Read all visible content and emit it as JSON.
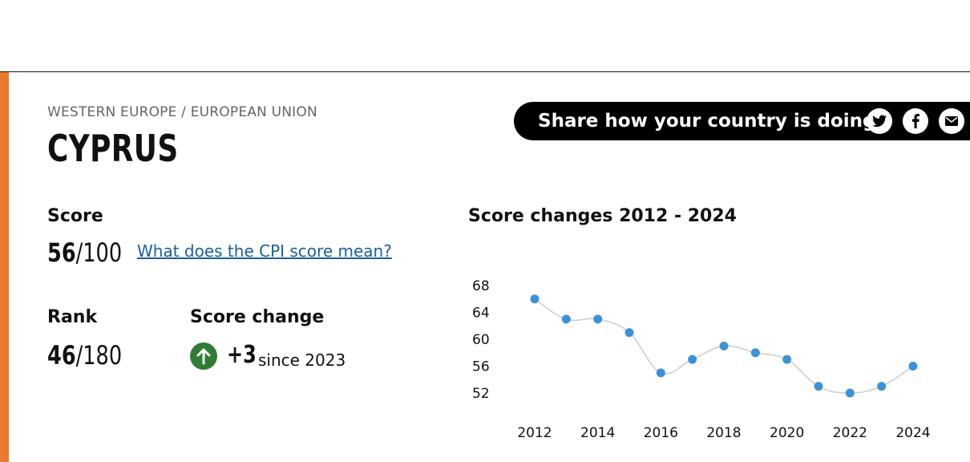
{
  "region": "WESTERN EUROPE / EUROPEAN UNION",
  "country": "CYPRUS",
  "share": {
    "label": "Share how your country is doing",
    "icons": [
      "twitter-icon",
      "facebook-icon",
      "email-icon"
    ]
  },
  "score": {
    "label": "Score",
    "value": "56",
    "out_of": "/100",
    "link": "What does the CPI score mean?"
  },
  "rank": {
    "label": "Rank",
    "value": "46",
    "out_of": "/180"
  },
  "score_change": {
    "label": "Score change",
    "value": "+3",
    "since": "since 2023",
    "icon": "arrow-up-icon"
  },
  "colors": {
    "accent": "#e8792f",
    "positive": "#2e7d32",
    "point": "#3b93d6",
    "line": "#cccccc",
    "link": "#1a5fa0"
  },
  "chart_title": "Score changes 2012 - 2024",
  "chart_data": {
    "type": "line",
    "x": [
      2012,
      2013,
      2014,
      2015,
      2016,
      2017,
      2018,
      2019,
      2020,
      2021,
      2022,
      2023,
      2024
    ],
    "values": [
      66,
      63,
      63,
      61,
      55,
      57,
      59,
      58,
      57,
      53,
      52,
      53,
      56
    ],
    "x_ticks": [
      "2012",
      "2014",
      "2016",
      "2018",
      "2020",
      "2022",
      "2024"
    ],
    "y_ticks": [
      "68",
      "64",
      "60",
      "56",
      "52"
    ],
    "ylim": [
      52,
      68
    ],
    "xlim": [
      2012,
      2024
    ],
    "grid": false
  }
}
